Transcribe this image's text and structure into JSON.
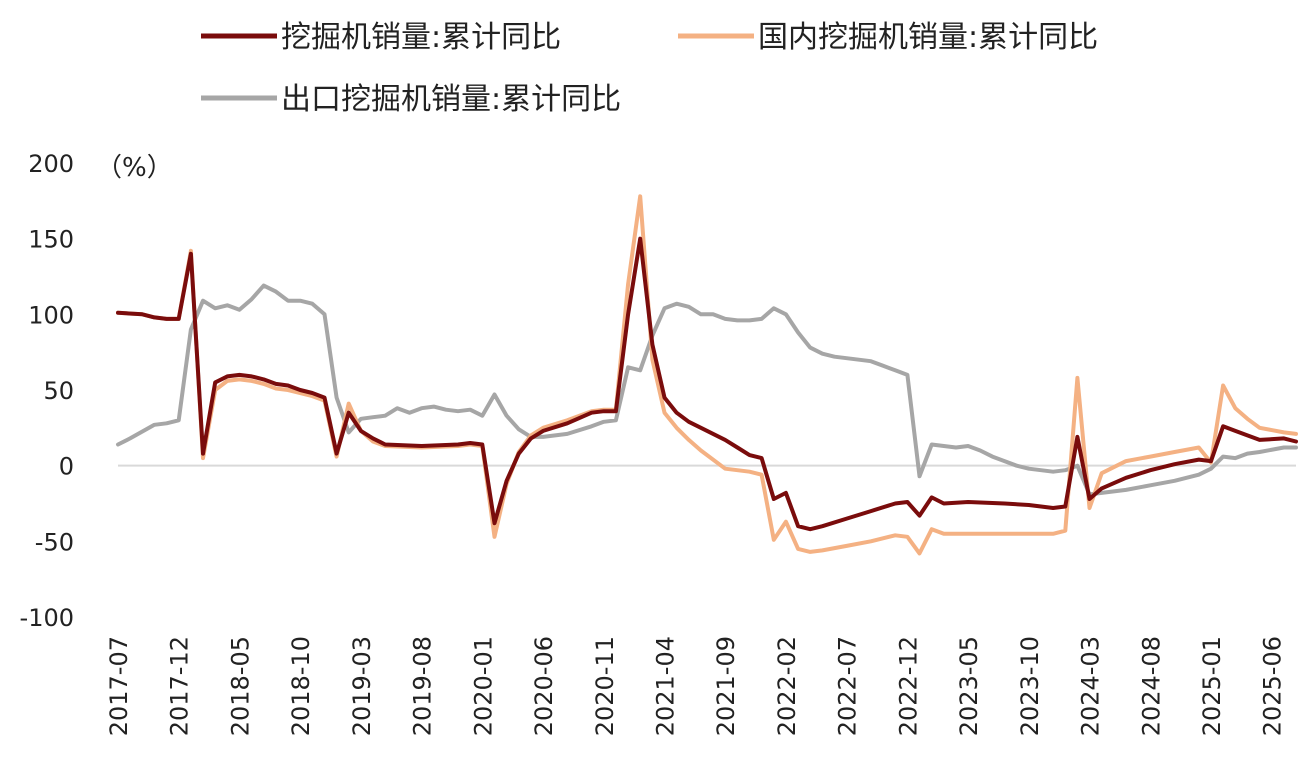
{
  "chart_data": {
    "type": "line",
    "ylabel": "（%）",
    "ylim": [
      -100,
      200
    ],
    "yticks": [
      200,
      150,
      100,
      50,
      0,
      -50,
      -100
    ],
    "xlim": [
      "2017-07",
      "2025-08"
    ],
    "xticks": [
      "2017-07",
      "2017-12",
      "2018-05",
      "2018-10",
      "2019-03",
      "2019-08",
      "2020-01",
      "2020-06",
      "2020-11",
      "2021-04",
      "2021-09",
      "2022-02",
      "2022-07",
      "2022-12",
      "2023-05",
      "2023-10",
      "2024-03",
      "2024-08",
      "2025-01",
      "2025-06"
    ],
    "zero_line": true,
    "grid": false,
    "legend": "top",
    "series": [
      {
        "name": "挖掘机销量:累计同比",
        "color": "#7a0c0c",
        "points": [
          [
            "2017-07",
            101
          ],
          [
            "2017-09",
            100
          ],
          [
            "2017-10",
            98
          ],
          [
            "2017-11",
            97
          ],
          [
            "2017-12",
            97
          ],
          [
            "2018-01",
            140
          ],
          [
            "2018-02",
            8
          ],
          [
            "2018-03",
            55
          ],
          [
            "2018-04",
            59
          ],
          [
            "2018-05",
            60
          ],
          [
            "2018-06",
            59
          ],
          [
            "2018-07",
            57
          ],
          [
            "2018-08",
            54
          ],
          [
            "2018-09",
            53
          ],
          [
            "2018-10",
            50
          ],
          [
            "2018-11",
            48
          ],
          [
            "2018-12",
            45
          ],
          [
            "2019-01",
            8
          ],
          [
            "2019-02",
            35
          ],
          [
            "2019-03",
            23
          ],
          [
            "2019-04",
            18
          ],
          [
            "2019-05",
            14
          ],
          [
            "2019-08",
            13
          ],
          [
            "2019-11",
            14
          ],
          [
            "2019-12",
            15
          ],
          [
            "2020-01",
            14
          ],
          [
            "2020-02",
            -38
          ],
          [
            "2020-03",
            -10
          ],
          [
            "2020-04",
            8
          ],
          [
            "2020-05",
            18
          ],
          [
            "2020-06",
            23
          ],
          [
            "2020-08",
            28
          ],
          [
            "2020-10",
            35
          ],
          [
            "2020-11",
            36
          ],
          [
            "2020-12",
            36
          ],
          [
            "2021-01",
            100
          ],
          [
            "2021-02",
            150
          ],
          [
            "2021-03",
            80
          ],
          [
            "2021-04",
            45
          ],
          [
            "2021-05",
            35
          ],
          [
            "2021-06",
            29
          ],
          [
            "2021-07",
            25
          ],
          [
            "2021-09",
            17
          ],
          [
            "2021-10",
            12
          ],
          [
            "2021-11",
            7
          ],
          [
            "2021-12",
            5
          ],
          [
            "2022-01",
            -22
          ],
          [
            "2022-02",
            -18
          ],
          [
            "2022-03",
            -40
          ],
          [
            "2022-04",
            -42
          ],
          [
            "2022-05",
            -40
          ],
          [
            "2022-07",
            -35
          ],
          [
            "2022-09",
            -30
          ],
          [
            "2022-11",
            -25
          ],
          [
            "2022-12",
            -24
          ],
          [
            "2023-01",
            -33
          ],
          [
            "2023-02",
            -21
          ],
          [
            "2023-03",
            -25
          ],
          [
            "2023-05",
            -24
          ],
          [
            "2023-08",
            -25
          ],
          [
            "2023-10",
            -26
          ],
          [
            "2023-12",
            -28
          ],
          [
            "2024-01",
            -27
          ],
          [
            "2024-02",
            19
          ],
          [
            "2024-03",
            -22
          ],
          [
            "2024-04",
            -15
          ],
          [
            "2024-06",
            -8
          ],
          [
            "2024-08",
            -3
          ],
          [
            "2024-10",
            1
          ],
          [
            "2024-12",
            4
          ],
          [
            "2025-01",
            3
          ],
          [
            "2025-02",
            26
          ],
          [
            "2025-03",
            23
          ],
          [
            "2025-04",
            20
          ],
          [
            "2025-05",
            17
          ],
          [
            "2025-07",
            18
          ],
          [
            "2025-08",
            16
          ]
        ]
      },
      {
        "name": "国内挖掘机销量:累计同比",
        "color": "#f4b183",
        "points": [
          [
            "2017-07",
            101
          ],
          [
            "2017-09",
            100
          ],
          [
            "2017-10",
            98
          ],
          [
            "2017-11",
            97
          ],
          [
            "2017-12",
            97
          ],
          [
            "2018-01",
            142
          ],
          [
            "2018-02",
            5
          ],
          [
            "2018-03",
            50
          ],
          [
            "2018-04",
            56
          ],
          [
            "2018-05",
            57
          ],
          [
            "2018-06",
            56
          ],
          [
            "2018-07",
            54
          ],
          [
            "2018-08",
            51
          ],
          [
            "2018-09",
            50
          ],
          [
            "2018-10",
            48
          ],
          [
            "2018-11",
            46
          ],
          [
            "2018-12",
            43
          ],
          [
            "2019-01",
            6
          ],
          [
            "2019-02",
            41
          ],
          [
            "2019-03",
            23
          ],
          [
            "2019-04",
            16
          ],
          [
            "2019-05",
            13
          ],
          [
            "2019-08",
            12
          ],
          [
            "2019-11",
            13
          ],
          [
            "2019-12",
            14
          ],
          [
            "2020-01",
            13
          ],
          [
            "2020-02",
            -47
          ],
          [
            "2020-03",
            -12
          ],
          [
            "2020-04",
            9
          ],
          [
            "2020-05",
            20
          ],
          [
            "2020-06",
            25
          ],
          [
            "2020-08",
            30
          ],
          [
            "2020-10",
            36
          ],
          [
            "2020-11",
            37
          ],
          [
            "2020-12",
            37
          ],
          [
            "2021-01",
            120
          ],
          [
            "2021-02",
            178
          ],
          [
            "2021-03",
            70
          ],
          [
            "2021-04",
            35
          ],
          [
            "2021-05",
            25
          ],
          [
            "2021-06",
            17
          ],
          [
            "2021-07",
            10
          ],
          [
            "2021-09",
            -2
          ],
          [
            "2021-10",
            -3
          ],
          [
            "2021-11",
            -4
          ],
          [
            "2021-12",
            -6
          ],
          [
            "2022-01",
            -49
          ],
          [
            "2022-02",
            -37
          ],
          [
            "2022-03",
            -55
          ],
          [
            "2022-04",
            -57
          ],
          [
            "2022-05",
            -56
          ],
          [
            "2022-07",
            -53
          ],
          [
            "2022-09",
            -50
          ],
          [
            "2022-11",
            -46
          ],
          [
            "2022-12",
            -47
          ],
          [
            "2023-01",
            -58
          ],
          [
            "2023-02",
            -42
          ],
          [
            "2023-03",
            -45
          ],
          [
            "2023-05",
            -45
          ],
          [
            "2023-08",
            -45
          ],
          [
            "2023-10",
            -45
          ],
          [
            "2023-12",
            -45
          ],
          [
            "2024-01",
            -43
          ],
          [
            "2024-02",
            58
          ],
          [
            "2024-03",
            -28
          ],
          [
            "2024-04",
            -5
          ],
          [
            "2024-06",
            3
          ],
          [
            "2024-08",
            6
          ],
          [
            "2024-10",
            9
          ],
          [
            "2024-12",
            12
          ],
          [
            "2025-01",
            2
          ],
          [
            "2025-02",
            53
          ],
          [
            "2025-03",
            38
          ],
          [
            "2025-04",
            31
          ],
          [
            "2025-05",
            25
          ],
          [
            "2025-07",
            22
          ],
          [
            "2025-08",
            21
          ]
        ]
      },
      {
        "name": "出口挖掘机销量:累计同比",
        "color": "#a6a6a6",
        "points": [
          [
            "2017-07",
            14
          ],
          [
            "2017-08",
            18
          ],
          [
            "2017-10",
            27
          ],
          [
            "2017-11",
            28
          ],
          [
            "2017-12",
            30
          ],
          [
            "2018-01",
            90
          ],
          [
            "2018-02",
            109
          ],
          [
            "2018-03",
            104
          ],
          [
            "2018-04",
            106
          ],
          [
            "2018-05",
            103
          ],
          [
            "2018-06",
            110
          ],
          [
            "2018-07",
            119
          ],
          [
            "2018-08",
            115
          ],
          [
            "2018-09",
            109
          ],
          [
            "2018-10",
            109
          ],
          [
            "2018-11",
            107
          ],
          [
            "2018-12",
            100
          ],
          [
            "2019-01",
            45
          ],
          [
            "2019-02",
            22
          ],
          [
            "2019-03",
            31
          ],
          [
            "2019-04",
            32
          ],
          [
            "2019-05",
            33
          ],
          [
            "2019-06",
            38
          ],
          [
            "2019-07",
            35
          ],
          [
            "2019-08",
            38
          ],
          [
            "2019-09",
            39
          ],
          [
            "2019-10",
            37
          ],
          [
            "2019-11",
            36
          ],
          [
            "2019-12",
            37
          ],
          [
            "2020-01",
            33
          ],
          [
            "2020-02",
            47
          ],
          [
            "2020-03",
            33
          ],
          [
            "2020-04",
            24
          ],
          [
            "2020-05",
            19
          ],
          [
            "2020-06",
            19
          ],
          [
            "2020-08",
            21
          ],
          [
            "2020-10",
            26
          ],
          [
            "2020-11",
            29
          ],
          [
            "2020-12",
            30
          ],
          [
            "2021-01",
            65
          ],
          [
            "2021-02",
            63
          ],
          [
            "2021-03",
            86
          ],
          [
            "2021-04",
            104
          ],
          [
            "2021-05",
            107
          ],
          [
            "2021-06",
            105
          ],
          [
            "2021-07",
            100
          ],
          [
            "2021-08",
            100
          ],
          [
            "2021-09",
            97
          ],
          [
            "2021-10",
            96
          ],
          [
            "2021-11",
            96
          ],
          [
            "2021-12",
            97
          ],
          [
            "2022-01",
            104
          ],
          [
            "2022-02",
            100
          ],
          [
            "2022-03",
            88
          ],
          [
            "2022-04",
            78
          ],
          [
            "2022-05",
            74
          ],
          [
            "2022-06",
            72
          ],
          [
            "2022-07",
            71
          ],
          [
            "2022-08",
            70
          ],
          [
            "2022-09",
            69
          ],
          [
            "2022-10",
            66
          ],
          [
            "2022-11",
            63
          ],
          [
            "2022-12",
            60
          ],
          [
            "2023-01",
            -7
          ],
          [
            "2023-02",
            14
          ],
          [
            "2023-03",
            13
          ],
          [
            "2023-04",
            12
          ],
          [
            "2023-05",
            13
          ],
          [
            "2023-06",
            10
          ],
          [
            "2023-07",
            6
          ],
          [
            "2023-08",
            3
          ],
          [
            "2023-09",
            0
          ],
          [
            "2023-10",
            -2
          ],
          [
            "2023-11",
            -3
          ],
          [
            "2023-12",
            -4
          ],
          [
            "2024-01",
            -3
          ],
          [
            "2024-02",
            0
          ],
          [
            "2024-03",
            -19
          ],
          [
            "2024-04",
            -18
          ],
          [
            "2024-06",
            -16
          ],
          [
            "2024-08",
            -13
          ],
          [
            "2024-10",
            -10
          ],
          [
            "2024-12",
            -6
          ],
          [
            "2025-01",
            -2
          ],
          [
            "2025-02",
            6
          ],
          [
            "2025-03",
            5
          ],
          [
            "2025-04",
            8
          ],
          [
            "2025-05",
            9
          ],
          [
            "2025-07",
            12
          ],
          [
            "2025-08",
            12
          ]
        ]
      }
    ]
  }
}
